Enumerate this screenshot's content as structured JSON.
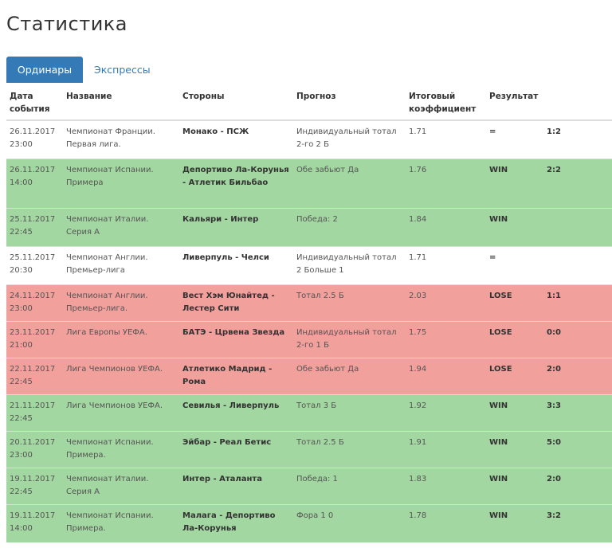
{
  "page": {
    "title": "Статистика"
  },
  "tabs": [
    {
      "label": "Ординары",
      "active": true
    },
    {
      "label": "Экспрессы",
      "active": false
    }
  ],
  "table": {
    "headers": {
      "date": "Дата события",
      "name": "Название",
      "teams": "Стороны",
      "forecast": "Прогноз",
      "coef": "Итоговый коэффициент",
      "result": "Результат"
    },
    "rows": [
      {
        "date": "26.11.2017 23:00",
        "name": "Чемпионат Франции. Первая лига.",
        "teams": "Монако - ПСЖ",
        "forecast": "Индивидуальный тотал 2-го 2 Б",
        "coef": "1.71",
        "result": "=",
        "score": "1:2",
        "status": "neutral"
      },
      {
        "date": "26.11.2017 14:00",
        "name": "Чемпионат Испании. Примера",
        "teams": "Депортиво Ла-Корунья - Атлетик Бильбао",
        "forecast": "Обе забьют Да",
        "coef": "1.76",
        "result": "WIN",
        "score": "2:2",
        "status": "win"
      },
      {
        "date": "25.11.2017 22:45",
        "name": "Чемпионат Италии. Серия А",
        "teams": "Кальяри - Интер",
        "forecast": "Победа: 2",
        "coef": "1.84",
        "result": "WIN",
        "score": "",
        "status": "win"
      },
      {
        "date": "25.11.2017 20:30",
        "name": "Чемпионат Англии. Премьер-лига",
        "teams": "Ливерпуль - Челси",
        "forecast": "Индивидуальный тотал 2 Больше 1",
        "coef": "1.71",
        "result": "=",
        "score": "",
        "status": "neutral"
      },
      {
        "date": "24.11.2017 23:00",
        "name": "Чемпионат Англии. Премьер-лига.",
        "teams": "Вест Хэм Юнайтед - Лестер Сити",
        "forecast": "Тотал 2.5 Б",
        "coef": "2.03",
        "result": "LOSE",
        "score": "1:1",
        "status": "lose"
      },
      {
        "date": "23.11.2017 21:00",
        "name": "Лига Европы УЕФА.",
        "teams": "БАТЭ - Црвена Звезда",
        "forecast": "Индивидуальный тотал 2-го 1 Б",
        "coef": "1.75",
        "result": "LOSE",
        "score": "0:0",
        "status": "lose"
      },
      {
        "date": "22.11.2017 22:45",
        "name": "Лига Чемпионов УЕФА.",
        "teams": "Атлетико Мадрид - Рома",
        "forecast": "Обе забьют Да",
        "coef": "1.94",
        "result": "LOSE",
        "score": "2:0",
        "status": "lose"
      },
      {
        "date": "21.11.2017 22:45",
        "name": "Лига Чемпионов УЕФА.",
        "teams": "Севилья - Ливерпуль",
        "forecast": "Тотал 3 Б",
        "coef": "1.92",
        "result": "WIN",
        "score": "3:3",
        "status": "win"
      },
      {
        "date": "20.11.2017 23:00",
        "name": "Чемпионат Испании. Примера.",
        "teams": "Эйбар - Реал Бетис",
        "forecast": "Тотал 2.5 Б",
        "coef": "1.91",
        "result": "WIN",
        "score": "5:0",
        "status": "win"
      },
      {
        "date": "19.11.2017 22:45",
        "name": "Чемпионат Италии. Серия А",
        "teams": "Интер - Аталанта",
        "forecast": "Победа: 1",
        "coef": "1.83",
        "result": "WIN",
        "score": "2:0",
        "status": "win"
      },
      {
        "date": "19.11.2017 14:00",
        "name": "Чемпионат Испании. Примера.",
        "teams": "Малага - Депортиво Ла-Корунья",
        "forecast": "Фора 1 0",
        "coef": "1.78",
        "result": "WIN",
        "score": "3:2",
        "status": "win"
      }
    ]
  }
}
